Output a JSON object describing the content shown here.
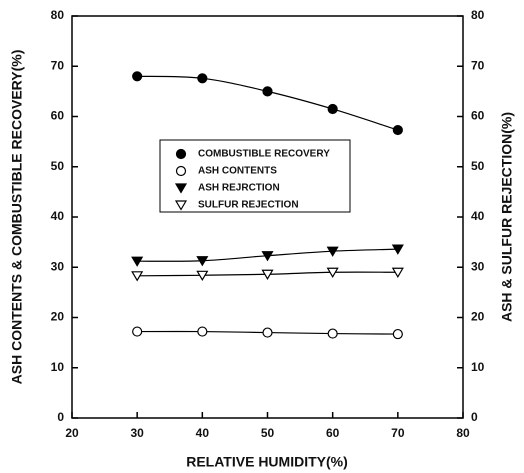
{
  "chart_data": {
    "type": "line",
    "x_label": "RELATIVE HUMIDITY(%)",
    "y_label": "ASH CONTENTS & COMBUSTIBLE RECOVERY(%)",
    "y2_label": "ASH & SULFUR REJECTION(%)",
    "x": [
      30,
      40,
      50,
      60,
      70
    ],
    "series": [
      {
        "name": "COMBUSTIBLE RECOVERY",
        "color": "#000000",
        "marker": "filled-circle",
        "values": [
          68,
          67.6,
          65,
          61.5,
          57.3
        ]
      },
      {
        "name": "ASH CONTENTS",
        "color": "#000000",
        "marker": "open-circle",
        "values": [
          17.2,
          17.2,
          17,
          16.8,
          16.7
        ]
      },
      {
        "name": "ASH REJRCTION",
        "color": "#000000",
        "marker": "filled-triangle-down",
        "values": [
          31.2,
          31.3,
          32.3,
          33.2,
          33.6
        ]
      },
      {
        "name": "SULFUR REJECTION",
        "color": "#000000",
        "marker": "open-triangle-down",
        "values": [
          28.3,
          28.4,
          28.6,
          29,
          29
        ]
      }
    ],
    "xlim": [
      20,
      80
    ],
    "xticks": [
      20,
      30,
      40,
      50,
      60,
      70,
      80
    ],
    "ylim": [
      0,
      80
    ],
    "yticks": [
      0,
      10,
      20,
      30,
      40,
      50,
      60,
      70,
      80
    ],
    "y2lim": [
      0,
      80
    ],
    "y2ticks": [
      0,
      10,
      20,
      30,
      40,
      50,
      60,
      70,
      80
    ],
    "grid": false
  }
}
